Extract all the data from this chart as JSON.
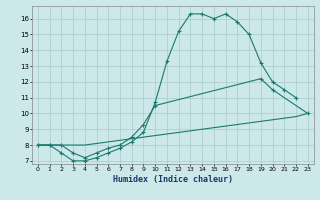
{
  "xlabel": "Humidex (Indice chaleur)",
  "bg_color": "#cce8e8",
  "grid_color": "#aacccc",
  "line_color": "#1a7a6e",
  "xlim": [
    -0.5,
    23.5
  ],
  "ylim": [
    6.8,
    16.8
  ],
  "yticks": [
    7,
    8,
    9,
    10,
    11,
    12,
    13,
    14,
    15,
    16
  ],
  "c1x": [
    0,
    1,
    2,
    3,
    4,
    5,
    6,
    7,
    8,
    9,
    10,
    11,
    12,
    13,
    14,
    15,
    16,
    17,
    18,
    19,
    20,
    21,
    22
  ],
  "c1y": [
    8.0,
    8.0,
    7.5,
    7.0,
    7.0,
    7.2,
    7.5,
    7.8,
    8.2,
    8.8,
    10.7,
    13.3,
    15.2,
    16.3,
    16.3,
    16.0,
    16.3,
    15.8,
    15.0,
    13.2,
    12.0,
    11.5,
    11.0
  ],
  "c2x": [
    0,
    1,
    2,
    3,
    4,
    5,
    6,
    7,
    8,
    9,
    10,
    19,
    20,
    23
  ],
  "c2y": [
    8.0,
    8.0,
    8.0,
    7.5,
    7.2,
    7.5,
    7.8,
    8.0,
    8.5,
    9.3,
    10.5,
    12.2,
    11.5,
    10.0
  ],
  "c3x": [
    0,
    1,
    2,
    3,
    4,
    5,
    6,
    7,
    8,
    9,
    10,
    11,
    12,
    13,
    14,
    15,
    16,
    17,
    18,
    19,
    20,
    21,
    22,
    23
  ],
  "c3y": [
    8.0,
    8.0,
    8.0,
    8.0,
    8.0,
    8.1,
    8.2,
    8.3,
    8.4,
    8.5,
    8.6,
    8.7,
    8.8,
    8.9,
    9.0,
    9.1,
    9.2,
    9.3,
    9.4,
    9.5,
    9.6,
    9.7,
    9.8,
    10.0
  ]
}
